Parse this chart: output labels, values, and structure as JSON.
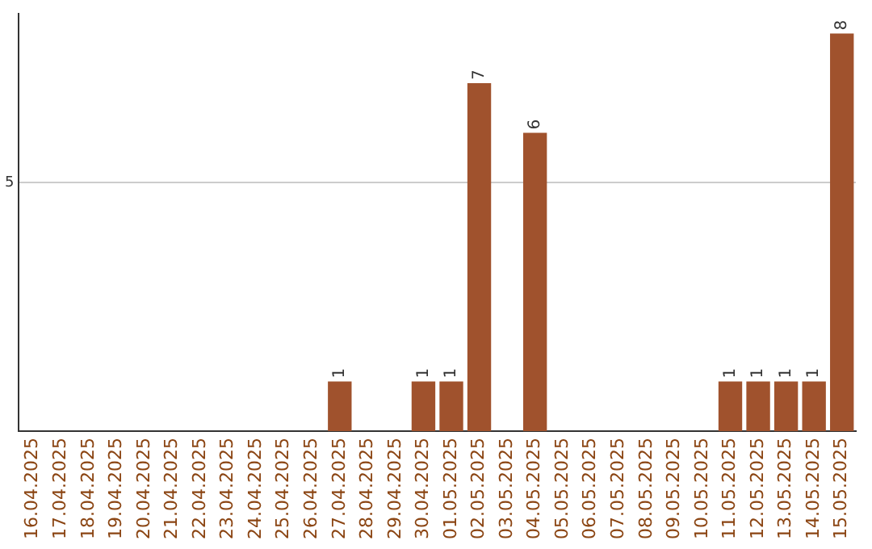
{
  "chart_data": {
    "type": "bar",
    "categories": [
      "16.04.2025",
      "17.04.2025",
      "18.04.2025",
      "19.04.2025",
      "20.04.2025",
      "21.04.2025",
      "22.04.2025",
      "23.04.2025",
      "24.04.2025",
      "25.04.2025",
      "26.04.2025",
      "27.04.2025",
      "28.04.2025",
      "29.04.2025",
      "30.04.2025",
      "01.05.2025",
      "02.05.2025",
      "03.05.2025",
      "04.05.2025",
      "05.05.2025",
      "06.05.2025",
      "07.05.2025",
      "08.05.2025",
      "09.05.2025",
      "10.05.2025",
      "11.05.2025",
      "12.05.2025",
      "13.05.2025",
      "14.05.2025",
      "15.05.2025"
    ],
    "values": [
      0,
      0,
      0,
      0,
      0,
      0,
      0,
      0,
      0,
      0,
      0,
      1,
      0,
      0,
      1,
      1,
      7,
      0,
      6,
      0,
      0,
      0,
      0,
      0,
      0,
      1,
      1,
      1,
      1,
      8
    ],
    "value_labels": [
      null,
      null,
      null,
      null,
      null,
      null,
      null,
      null,
      null,
      null,
      null,
      "1",
      null,
      null,
      "1",
      "1",
      "7",
      null,
      "6",
      null,
      null,
      null,
      null,
      null,
      null,
      "1",
      "1",
      "1",
      "1",
      "8"
    ],
    "color": "#a0522d",
    "ylim": [
      0,
      8.4
    ],
    "yticks": [
      5
    ],
    "grid": "y"
  }
}
